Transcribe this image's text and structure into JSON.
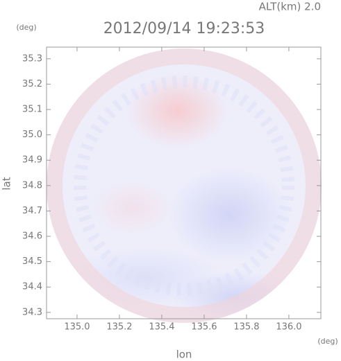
{
  "chart_data": {
    "type": "radar-field",
    "title": "2012/09/14 19:23:53",
    "altitude_label": "ALT(km) 2.0",
    "y_unit": "(deg)",
    "x_unit": "(deg)",
    "ylabel": "lat",
    "xlabel": "lon",
    "xlim": [
      134.856,
      136.151
    ],
    "ylim": [
      34.275,
      35.346
    ],
    "xticks": [
      {
        "value": 135,
        "label": "135.0"
      },
      135.2,
      135.4,
      135.6,
      135.8,
      {
        "value": 136,
        "label": "136.0"
      }
    ],
    "yticks": [
      34.3,
      34.4,
      34.5,
      34.6,
      34.7,
      34.8,
      34.9,
      {
        "value": 35,
        "label": "35.0"
      },
      35.1,
      35.2,
      35.3
    ]
  }
}
